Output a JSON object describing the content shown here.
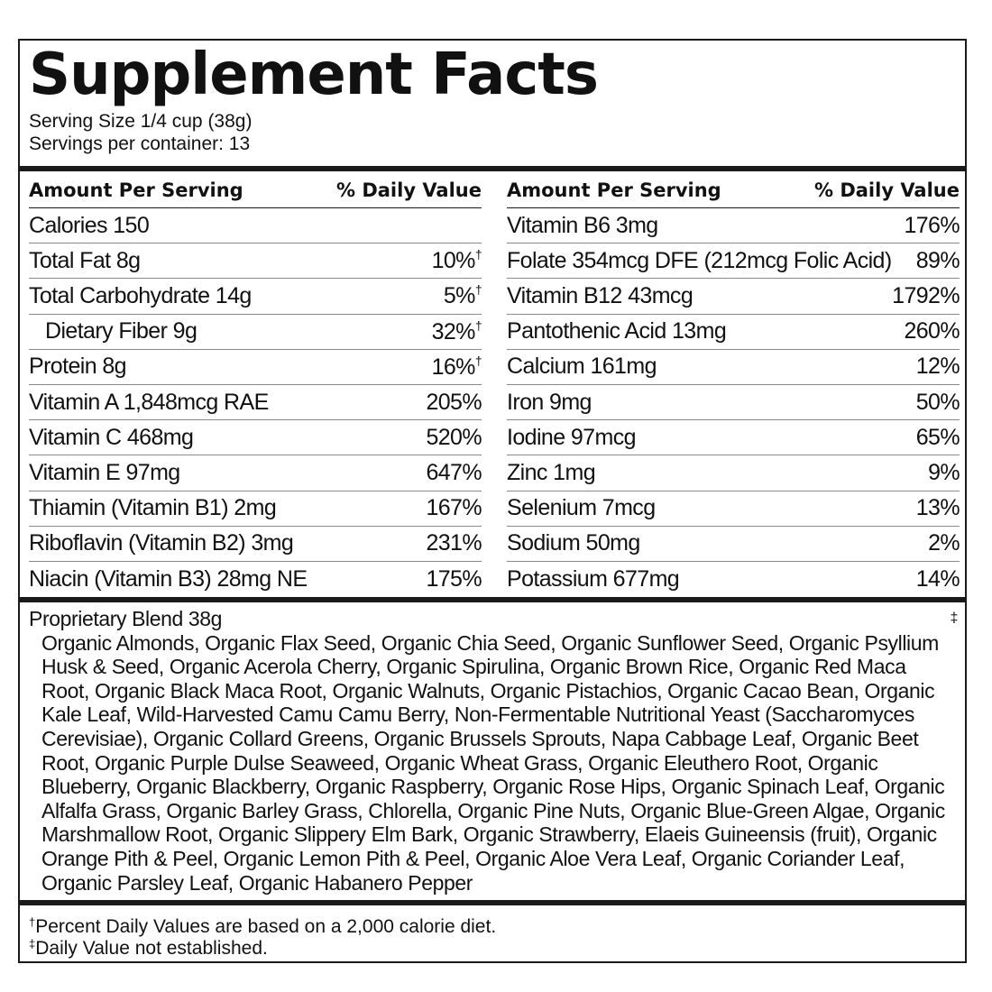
{
  "label": {
    "title": "Supplement Facts",
    "serving_size": "Serving Size 1/4 cup (38g)",
    "servings_per_container": "Servings per container: 13",
    "header_amount": "Amount Per Serving",
    "header_dv": "% Daily Value"
  },
  "left_rows": [
    {
      "label": "Calories  150",
      "value": "",
      "mark": ""
    },
    {
      "label": "Total Fat  8g",
      "value": "10%",
      "mark": "†"
    },
    {
      "label": "Total Carbohydrate  14g",
      "value": "5%",
      "mark": "†"
    },
    {
      "label": "Dietary Fiber  9g",
      "value": "32%",
      "mark": "†"
    },
    {
      "label": "Protein  8g",
      "value": "16%",
      "mark": "†"
    },
    {
      "label": "Vitamin A  1,848mcg RAE",
      "value": "205%",
      "mark": ""
    },
    {
      "label": "Vitamin C  468mg",
      "value": "520%",
      "mark": ""
    },
    {
      "label": "Vitamin E  97mg",
      "value": "647%",
      "mark": ""
    },
    {
      "label": "Thiamin (Vitamin B1)  2mg",
      "value": "167%",
      "mark": ""
    },
    {
      "label": "Riboflavin (Vitamin B2)  3mg",
      "value": "231%",
      "mark": ""
    },
    {
      "label": "Niacin (Vitamin B3)  28mg NE",
      "value": "175%",
      "mark": ""
    }
  ],
  "right_rows": [
    {
      "label": "Vitamin B6  3mg",
      "value": "176%"
    },
    {
      "label": "Folate  354mcg DFE (212mcg Folic Acid)",
      "value": "89%"
    },
    {
      "label": "Vitamin B12  43mcg",
      "value": "1792%"
    },
    {
      "label": "Pantothenic Acid  13mg",
      "value": "260%"
    },
    {
      "label": "Calcium  161mg",
      "value": "12%"
    },
    {
      "label": "Iron  9mg",
      "value": "50%"
    },
    {
      "label": "Iodine  97mcg",
      "value": "65%"
    },
    {
      "label": "Zinc  1mg",
      "value": "9%"
    },
    {
      "label": "Selenium  7mcg",
      "value": "13%"
    },
    {
      "label": "Sodium  50mg",
      "value": "2%"
    },
    {
      "label": "Potassium  677mg",
      "value": "14%"
    }
  ],
  "blend": {
    "name": "Proprietary Blend  38g",
    "mark": "‡",
    "ingredients": "Organic Almonds, Organic Flax Seed, Organic Chia Seed, Organic Sunflower Seed, Organic Psyllium Husk & Seed, Organic Acerola Cherry, Organic Spirulina, Organic Brown Rice, Organic Red Maca Root, Organic Black Maca Root, Organic Walnuts, Organic Pistachios, Organic Cacao Bean, Organic Kale Leaf, Wild-Harvested Camu Camu Berry, Non-Fermentable Nutritional Yeast (Saccharomyces Cerevisiae), Organic Collard Greens, Organic Brussels Sprouts, Napa Cabbage Leaf, Organic Beet Root, Organic Purple Dulse Seaweed, Organic Wheat Grass, Organic Eleuthero Root, Organic Blueberry, Organic Blackberry, Organic Raspberry, Organic Rose Hips, Organic Spinach Leaf, Organic Alfalfa Grass, Organic Barley Grass, Chlorella, Organic Pine Nuts, Organic Blue-Green Algae, Organic Marshmallow Root, Organic Slippery Elm Bark, Organic Strawberry, Elaeis Guineensis (fruit), Organic Orange Pith & Peel, Organic Lemon Pith & Peel, Organic Aloe Vera Leaf, Organic Coriander Leaf, Organic Parsley Leaf, Organic Habanero Pepper"
  },
  "footnotes": {
    "dagger_mark": "†",
    "dagger_text": "Percent Daily Values are based on a 2,000 calorie diet.",
    "double_dagger_mark": "‡",
    "double_dagger_text": "Daily Value not established."
  }
}
